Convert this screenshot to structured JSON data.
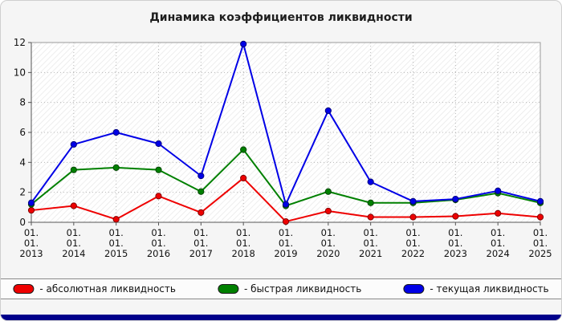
{
  "page": {
    "background_color": "#f5f5f5",
    "footer_bar_color": "#00008b"
  },
  "chart_data": {
    "type": "line",
    "title": "Динамика коэффициентов ликвидности",
    "categories": [
      "01.01.2013",
      "01.01.2014",
      "01.01.2015",
      "01.01.2016",
      "01.01.2017",
      "01.01.2018",
      "01.01.2019",
      "01.01.2020",
      "01.01.2021",
      "01.01.2022",
      "01.01.2023",
      "01.01.2024",
      "01.01.2025"
    ],
    "ylim": [
      0,
      12
    ],
    "ytick_step": 2,
    "grid": true,
    "legend_position": "bottom",
    "plot_background": "hatched",
    "series": [
      {
        "name": "абсолютная ликвидность",
        "legend_label": "- абсолютная ликвидность",
        "color": "#ee0000",
        "values": [
          0.8,
          1.1,
          0.2,
          1.75,
          0.65,
          2.95,
          0.05,
          0.75,
          0.35,
          0.35,
          0.4,
          0.6,
          0.35
        ]
      },
      {
        "name": "быстрая ликвидность",
        "legend_label": "- быстрая ликвидность",
        "color": "#008000",
        "values": [
          1.2,
          3.5,
          3.65,
          3.5,
          2.05,
          4.85,
          1.1,
          2.05,
          1.3,
          1.3,
          1.5,
          1.95,
          1.3
        ]
      },
      {
        "name": "текущая ликвидность",
        "legend_label": "- текущая ликвидность",
        "color": "#0000e6",
        "values": [
          1.3,
          5.2,
          6.0,
          5.25,
          3.1,
          11.9,
          1.2,
          7.45,
          2.7,
          1.4,
          1.55,
          2.1,
          1.4
        ]
      }
    ]
  }
}
